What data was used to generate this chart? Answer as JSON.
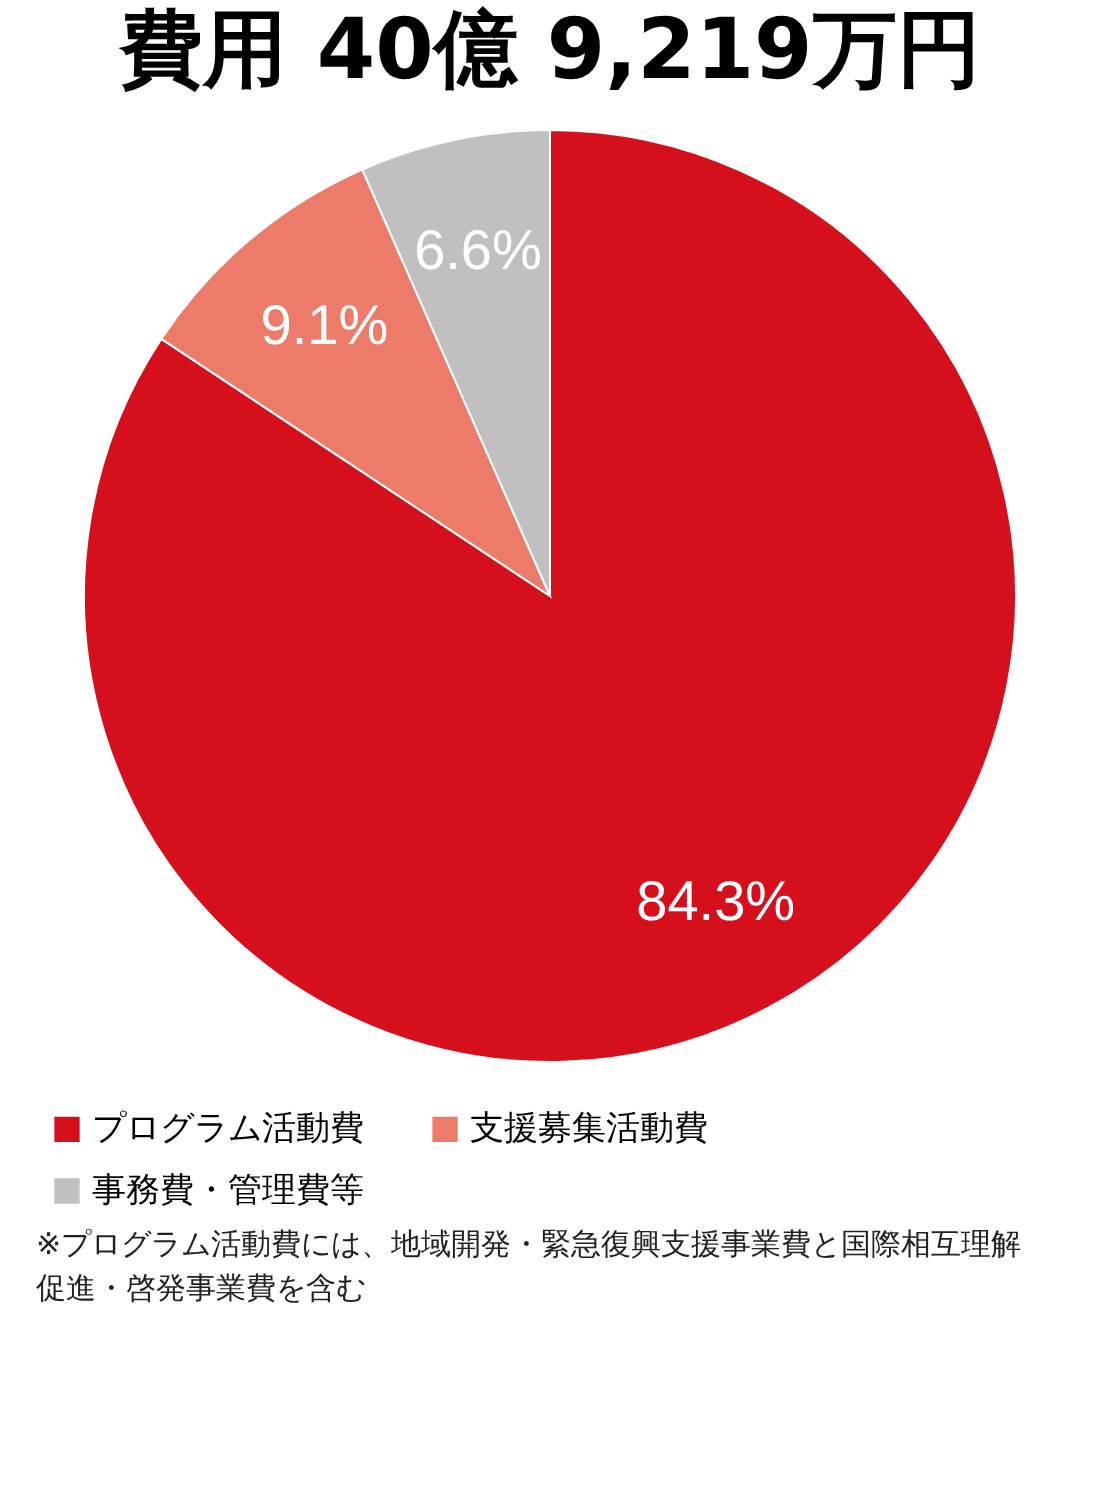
{
  "chart_data": {
    "type": "pie",
    "title": "費用 40億 9,219万円",
    "categories": [
      "プログラム活動費",
      "支援募集活動費",
      "事務費・管理費等"
    ],
    "values": [
      84.3,
      9.1,
      6.6
    ],
    "colors": [
      "#d50f1c",
      "#ec7b6a",
      "#c0c0c0"
    ],
    "value_labels": [
      "84.3%",
      "9.1%",
      "6.6%"
    ],
    "legend": "bottom",
    "annotations": [
      "※プログラム活動費には、地域開発・緊急復興支援事業費と国際相互理解促進・啓発事業費を含む"
    ]
  }
}
